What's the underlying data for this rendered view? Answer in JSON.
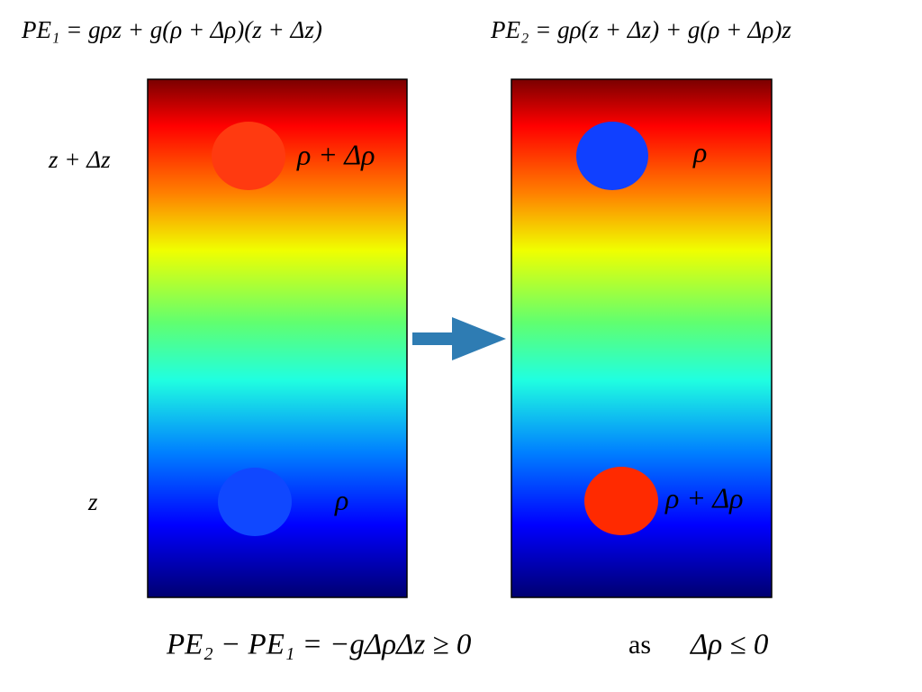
{
  "formulas": {
    "left": "PE₁ = gρz + g(ρ + Δρ)(z + Δz)",
    "right": "PE₂ = gρ(z + Δz) + g(ρ + Δρ)z"
  },
  "height_labels": [
    "z + Δz",
    "z"
  ],
  "panels": [
    {
      "parcels": [
        {
          "label": "ρ + Δρ"
        },
        {
          "label": "ρ"
        }
      ]
    },
    {
      "parcels": [
        {
          "label": "ρ"
        },
        {
          "label": "ρ + Δρ"
        }
      ]
    }
  ],
  "conclusion": {
    "equation": "PE₂ − PE₁ = −gΔρΔz ≥ 0",
    "word": "as",
    "condition": "Δρ ≤ 0"
  }
}
